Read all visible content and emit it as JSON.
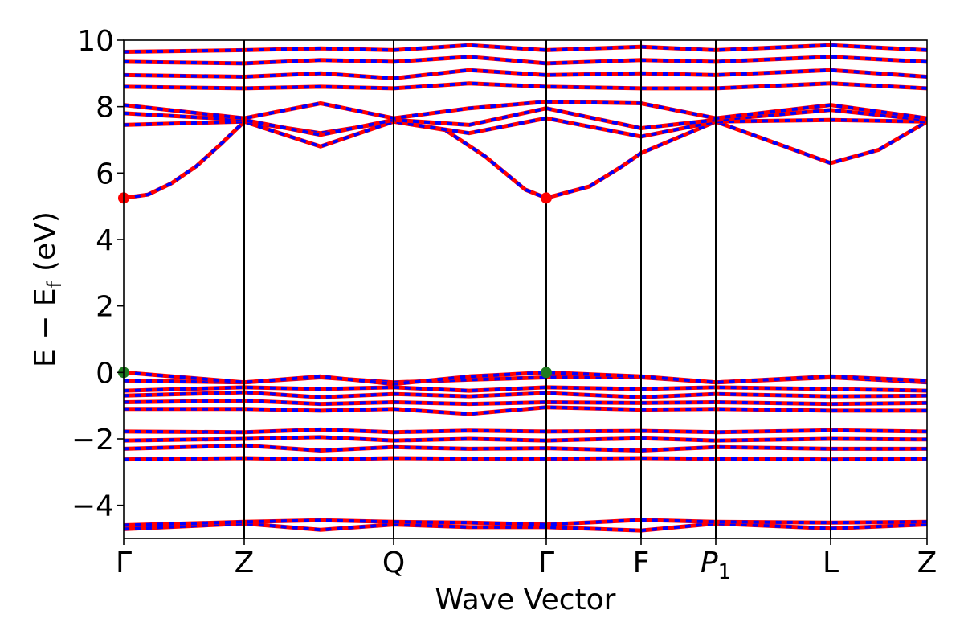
{
  "chart_data": {
    "type": "line",
    "title": "",
    "xlabel": "Wave Vector",
    "ylabel": {
      "main": "E − E",
      "subscript": "f",
      "unit": "(eV)"
    },
    "ylim": [
      -5,
      10
    ],
    "yticks": [
      -4,
      -2,
      0,
      2,
      4,
      6,
      8,
      10
    ],
    "ytick_labels": [
      "−4",
      "−2",
      "0",
      "2",
      "4",
      "6",
      "8",
      "10"
    ],
    "kpath": [
      {
        "label": "Γ",
        "italic": false,
        "sub": "",
        "k": 0.0
      },
      {
        "label": "Z",
        "italic": false,
        "sub": "",
        "k": 0.15
      },
      {
        "label": "Q",
        "italic": false,
        "sub": "",
        "k": 0.336
      },
      {
        "label": "Γ",
        "italic": false,
        "sub": "",
        "k": 0.526
      },
      {
        "label": "F",
        "italic": false,
        "sub": "",
        "k": 0.644
      },
      {
        "label": "P",
        "italic": true,
        "sub": "1",
        "k": 0.737
      },
      {
        "label": "L",
        "italic": false,
        "sub": "",
        "k": 0.88
      },
      {
        "label": "Z",
        "italic": false,
        "sub": "",
        "k": 1.0
      }
    ],
    "series": [
      {
        "color": "#ff0000",
        "style": "solid"
      },
      {
        "color": "#0000ff",
        "style": "dashed"
      }
    ],
    "bands": [
      {
        "k": [
          0.0,
          0.15,
          0.245,
          0.336,
          0.43,
          0.526,
          0.644,
          0.737,
          0.88,
          1.0
        ],
        "e": [
          -4.72,
          -4.55,
          -4.74,
          -4.58,
          -4.66,
          -4.66,
          -4.76,
          -4.55,
          -4.7,
          -4.58
        ]
      },
      {
        "k": [
          0.0,
          0.15,
          0.245,
          0.336,
          0.43,
          0.526,
          0.644,
          0.737,
          0.88,
          1.0
        ],
        "e": [
          -4.6,
          -4.5,
          -4.45,
          -4.5,
          -4.52,
          -4.58,
          -4.44,
          -4.5,
          -4.52,
          -4.5
        ]
      },
      {
        "k": [
          0.0,
          0.15,
          0.245,
          0.336,
          0.43,
          0.526,
          0.644,
          0.737,
          0.88,
          1.0
        ],
        "e": [
          -2.62,
          -2.58,
          -2.62,
          -2.58,
          -2.6,
          -2.6,
          -2.58,
          -2.6,
          -2.62,
          -2.6
        ]
      },
      {
        "k": [
          0.0,
          0.15,
          0.245,
          0.336,
          0.43,
          0.526,
          0.644,
          0.737,
          0.88,
          1.0
        ],
        "e": [
          -2.3,
          -2.2,
          -2.35,
          -2.25,
          -2.3,
          -2.28,
          -2.35,
          -2.25,
          -2.3,
          -2.3
        ]
      },
      {
        "k": [
          0.0,
          0.15,
          0.245,
          0.336,
          0.43,
          0.526,
          0.644,
          0.737,
          0.88,
          1.0
        ],
        "e": [
          -2.05,
          -2.0,
          -1.95,
          -2.05,
          -2.0,
          -2.05,
          -1.98,
          -2.05,
          -2.0,
          -2.02
        ]
      },
      {
        "k": [
          0.0,
          0.15,
          0.245,
          0.336,
          0.43,
          0.526,
          0.644,
          0.737,
          0.88,
          1.0
        ],
        "e": [
          -1.78,
          -1.8,
          -1.72,
          -1.8,
          -1.75,
          -1.78,
          -1.76,
          -1.8,
          -1.74,
          -1.78
        ]
      },
      {
        "k": [
          0.0,
          0.15,
          0.245,
          0.336,
          0.43,
          0.526,
          0.644,
          0.737,
          0.88,
          1.0
        ],
        "e": [
          -1.1,
          -1.1,
          -1.15,
          -1.1,
          -1.25,
          -1.05,
          -1.12,
          -1.1,
          -1.15,
          -1.15
        ]
      },
      {
        "k": [
          0.0,
          0.15,
          0.245,
          0.336,
          0.43,
          0.526,
          0.644,
          0.737,
          0.88,
          1.0
        ],
        "e": [
          -0.9,
          -0.85,
          -0.95,
          -0.9,
          -0.95,
          -0.9,
          -0.92,
          -0.9,
          -0.95,
          -0.92
        ]
      },
      {
        "k": [
          0.0,
          0.15,
          0.245,
          0.336,
          0.43,
          0.526,
          0.644,
          0.737,
          0.88,
          1.0
        ],
        "e": [
          -0.7,
          -0.6,
          -0.75,
          -0.65,
          -0.72,
          -0.62,
          -0.75,
          -0.65,
          -0.72,
          -0.7
        ]
      },
      {
        "k": [
          0.0,
          0.15,
          0.245,
          0.336,
          0.43,
          0.526,
          0.644,
          0.737,
          0.88,
          1.0
        ],
        "e": [
          -0.55,
          -0.45,
          -0.5,
          -0.45,
          -0.55,
          -0.45,
          -0.5,
          -0.45,
          -0.5,
          -0.55
        ]
      },
      {
        "k": [
          0.0,
          0.15,
          0.245,
          0.336,
          0.43,
          0.526,
          0.644,
          0.737,
          0.88,
          1.0
        ],
        "e": [
          -0.25,
          -0.3,
          -0.15,
          -0.3,
          -0.22,
          -0.15,
          -0.15,
          -0.3,
          -0.15,
          -0.3
        ]
      },
      {
        "k": [
          0.0,
          0.15,
          0.245,
          0.336,
          0.43,
          0.526,
          0.644,
          0.737,
          0.88,
          1.0
        ],
        "e": [
          0.0,
          -0.3,
          -0.12,
          -0.35,
          -0.12,
          0.0,
          -0.12,
          -0.3,
          -0.12,
          -0.25
        ]
      },
      {
        "k": [
          0.0,
          0.03,
          0.06,
          0.09,
          0.12,
          0.15,
          0.245,
          0.336,
          0.4,
          0.45,
          0.5,
          0.526,
          0.58,
          0.62,
          0.644,
          0.737,
          0.8,
          0.88,
          0.94,
          1.0
        ],
        "e": [
          5.25,
          5.35,
          5.7,
          6.2,
          6.85,
          7.55,
          7.2,
          7.55,
          7.3,
          6.5,
          5.5,
          5.25,
          5.6,
          6.2,
          6.6,
          7.55,
          7.0,
          6.3,
          6.7,
          7.55
        ]
      },
      {
        "k": [
          0.0,
          0.15,
          0.245,
          0.336,
          0.43,
          0.526,
          0.644,
          0.737,
          0.88,
          1.0
        ],
        "e": [
          7.45,
          7.55,
          6.8,
          7.55,
          7.2,
          7.65,
          7.1,
          7.55,
          7.6,
          7.55
        ]
      },
      {
        "k": [
          0.0,
          0.15,
          0.245,
          0.336,
          0.43,
          0.526,
          0.644,
          0.737,
          0.88,
          1.0
        ],
        "e": [
          7.8,
          7.6,
          7.15,
          7.6,
          7.45,
          7.95,
          7.35,
          7.6,
          7.9,
          7.6
        ]
      },
      {
        "k": [
          0.0,
          0.15,
          0.245,
          0.336,
          0.43,
          0.526,
          0.644,
          0.737,
          0.88,
          1.0
        ],
        "e": [
          8.05,
          7.65,
          8.1,
          7.65,
          7.95,
          8.15,
          8.1,
          7.65,
          8.05,
          7.65
        ]
      },
      {
        "k": [
          0.0,
          0.15,
          0.245,
          0.336,
          0.43,
          0.526,
          0.644,
          0.737,
          0.88,
          1.0
        ],
        "e": [
          8.6,
          8.55,
          8.6,
          8.55,
          8.7,
          8.6,
          8.55,
          8.55,
          8.7,
          8.55
        ]
      },
      {
        "k": [
          0.0,
          0.15,
          0.245,
          0.336,
          0.43,
          0.526,
          0.644,
          0.737,
          0.88,
          1.0
        ],
        "e": [
          8.95,
          8.9,
          9.0,
          8.85,
          9.1,
          8.95,
          9.0,
          8.95,
          9.1,
          8.9
        ]
      },
      {
        "k": [
          0.0,
          0.15,
          0.245,
          0.336,
          0.43,
          0.526,
          0.644,
          0.737,
          0.88,
          1.0
        ],
        "e": [
          9.35,
          9.3,
          9.4,
          9.35,
          9.5,
          9.3,
          9.4,
          9.35,
          9.5,
          9.35
        ]
      },
      {
        "k": [
          0.0,
          0.15,
          0.245,
          0.336,
          0.43,
          0.526,
          0.644,
          0.737,
          0.88,
          1.0
        ],
        "e": [
          9.65,
          9.7,
          9.75,
          9.7,
          9.85,
          9.7,
          9.8,
          9.7,
          9.85,
          9.7
        ]
      }
    ],
    "markers": [
      {
        "k": 0.0,
        "e": 5.25,
        "color": "#ff0000"
      },
      {
        "k": 0.526,
        "e": 5.25,
        "color": "#ff0000"
      },
      {
        "k": 0.0,
        "e": 0.0,
        "color": "#1f7a1f"
      },
      {
        "k": 0.526,
        "e": 0.0,
        "color": "#1f7a1f"
      }
    ],
    "grid": false,
    "legend": "none"
  }
}
